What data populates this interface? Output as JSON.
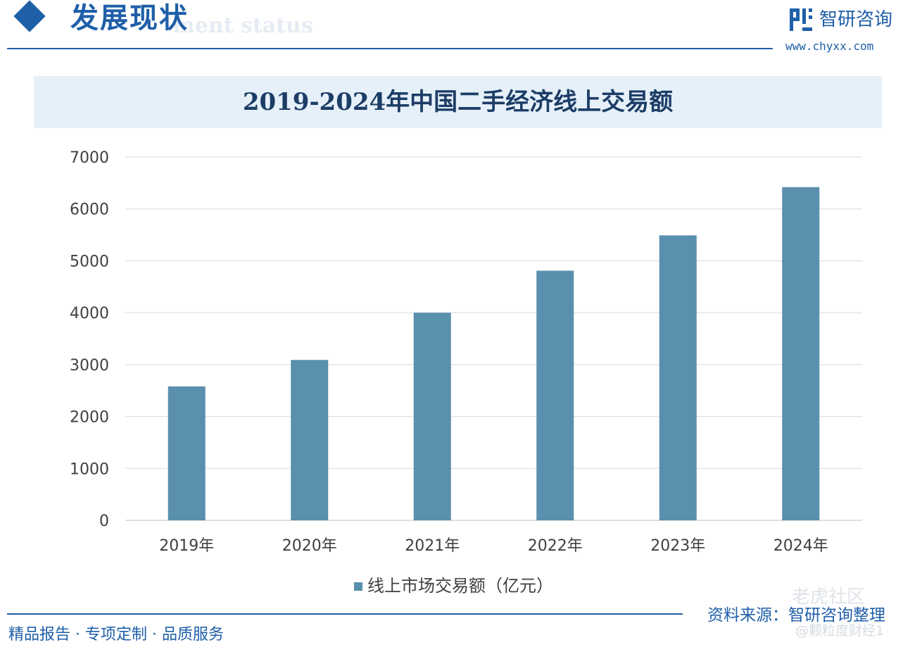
{
  "header": {
    "section_title": "发展现状",
    "section_subtitle": "ment status",
    "brand_name": "智研咨询",
    "brand_url": "www.chyxx.com"
  },
  "chart_data": {
    "type": "bar",
    "title": "2019-2024年中国二手经济线上交易额",
    "categories": [
      "2019年",
      "2020年",
      "2021年",
      "2022年",
      "2023年",
      "2024年"
    ],
    "series": [
      {
        "name": "线上市场交易额（亿元）",
        "values": [
          2580,
          3090,
          4000,
          4810,
          5490,
          6420
        ]
      }
    ],
    "ylim": [
      0,
      7000
    ],
    "yticks": [
      "0",
      "1000",
      "2000",
      "3000",
      "4000",
      "5000",
      "6000",
      "7000"
    ],
    "xlabel": "",
    "ylabel": "",
    "grid": true,
    "legend_position": "bottom",
    "bar_color": "#5a8fae",
    "grid_color": "#d9d9d9"
  },
  "footer": {
    "tagline": "精品报告 · 专项定制 · 品质服务",
    "source": "资料来源：智研咨询整理"
  },
  "watermarks": {
    "community": "老虎社区",
    "author": "@颗粒度财经1"
  },
  "colors": {
    "brand_blue": "#1f5fa8",
    "title_band": "#e6f0f9",
    "title_text": "#1c3d66"
  }
}
